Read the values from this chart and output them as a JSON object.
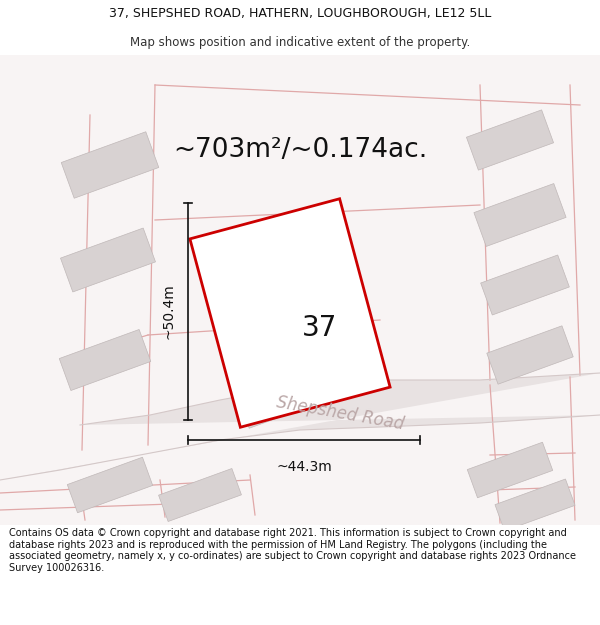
{
  "title_line1": "37, SHEPSHED ROAD, HATHERN, LOUGHBOROUGH, LE12 5LL",
  "title_line2": "Map shows position and indicative extent of the property.",
  "area_text": "~703m²/~0.174ac.",
  "number_label": "37",
  "width_label": "~44.3m",
  "height_label": "~50.4m",
  "road_label": "Shepshed Road",
  "footer_text": "Contains OS data © Crown copyright and database right 2021. This information is subject to Crown copyright and database rights 2023 and is reproduced with the permission of HM Land Registry. The polygons (including the associated geometry, namely x, y co-ordinates) are subject to Crown copyright and database rights 2023 Ordnance Survey 100026316.",
  "bg_color": "#ffffff",
  "map_bg": "#f9f6f6",
  "plot_outline_color": "#cc0000",
  "road_fill": "#e8e0e0",
  "road_line_color": "#c8b0b0",
  "building_fill": "#d8d2d2",
  "building_edge": "#c0b8b8",
  "pink_line_color": "#e8b8b8",
  "dim_line_color": "#111111",
  "title_fontsize": 9.0,
  "area_fontsize": 19,
  "number_fontsize": 20,
  "dim_fontsize": 10,
  "road_fontsize": 12,
  "footer_fontsize": 7.0
}
